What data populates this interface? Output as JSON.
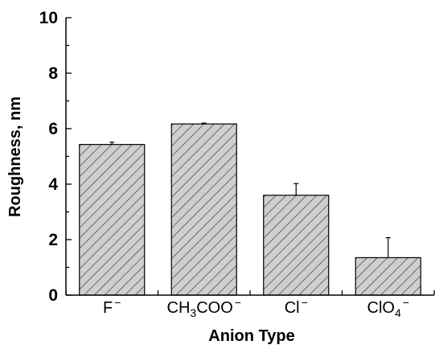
{
  "chart_data": {
    "type": "bar",
    "categories": [
      {
        "main": "F",
        "sub": "",
        "sup": "−"
      },
      {
        "main": "CH",
        "sub": "3",
        "after": "COO",
        "sup": "−"
      },
      {
        "main": "Cl",
        "sub": "",
        "sup": "−"
      },
      {
        "main": "ClO",
        "sub": "4",
        "sup": "−"
      }
    ],
    "values": [
      5.43,
      6.17,
      3.6,
      1.35
    ],
    "errors": [
      0.08,
      0.03,
      0.42,
      0.72
    ],
    "xlabel": "Anion Type",
    "ylabel": "Roughness, nm",
    "ylim": [
      0,
      10
    ],
    "yticks": [
      "0",
      "2",
      "4",
      "6",
      "8",
      "10"
    ],
    "bar_fill": "#cfcfcf",
    "hatch_color": "#333333",
    "grid": false,
    "legend": "none"
  }
}
